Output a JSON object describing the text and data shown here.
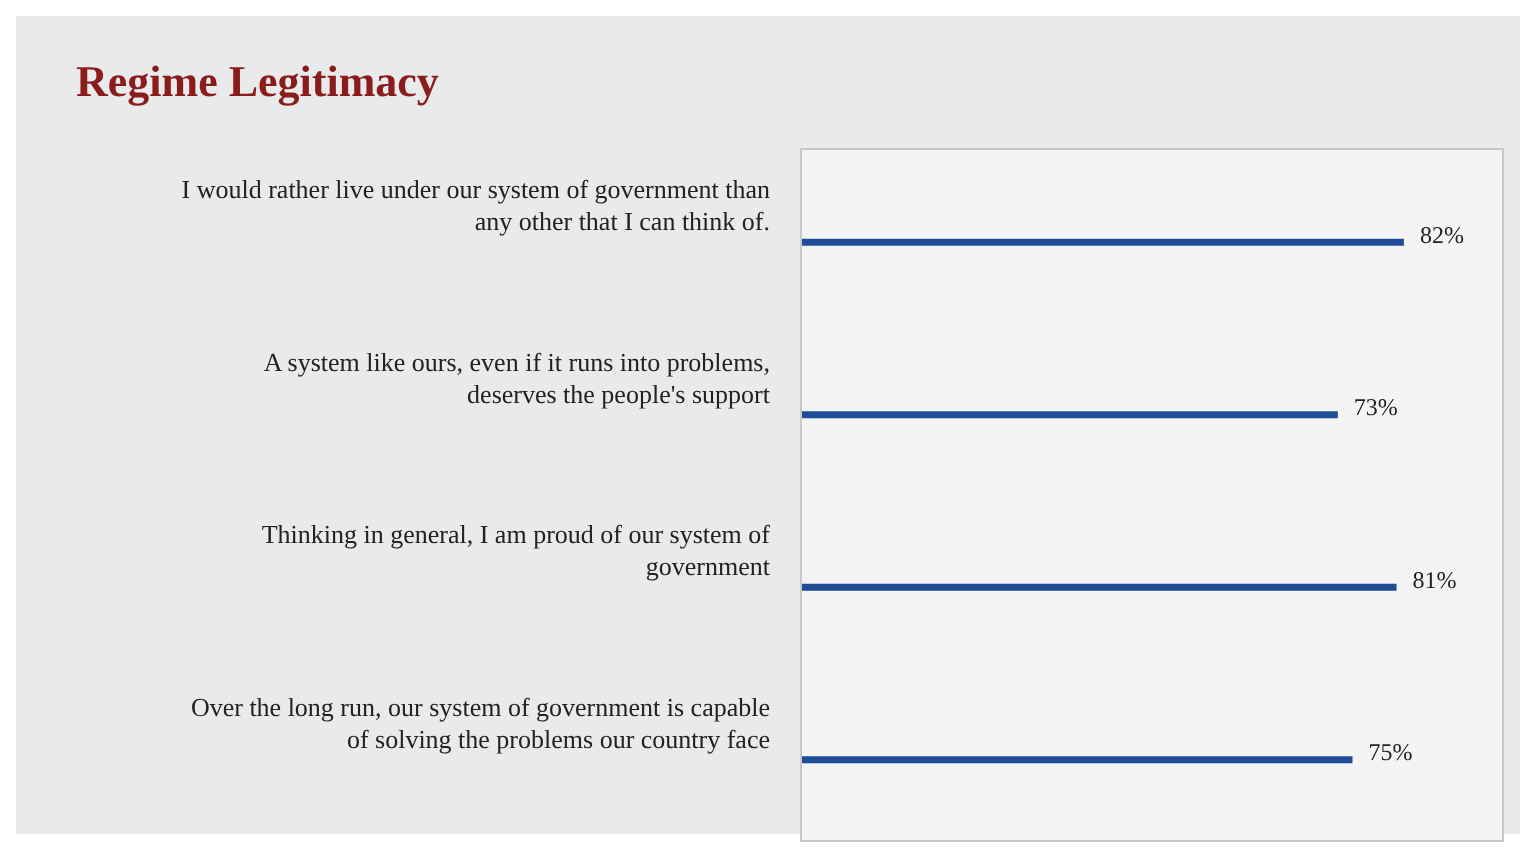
{
  "chart_data": {
    "type": "bar",
    "orientation": "horizontal",
    "title": "Regime Legitimacy",
    "categories": [
      "I would rather live under our system of government than any other that I can think of.",
      "A system like ours, even if it runs into problems, deserves the people's support",
      "Thinking in general, I am proud of our system of government",
      "Over the long run, our system of government is capable of solving the problems our country face"
    ],
    "values": [
      82,
      73,
      81,
      75
    ],
    "value_labels": [
      "82%",
      "73%",
      "81%",
      "75%"
    ],
    "color": "#1f4e96",
    "grid": false,
    "legend": false
  }
}
